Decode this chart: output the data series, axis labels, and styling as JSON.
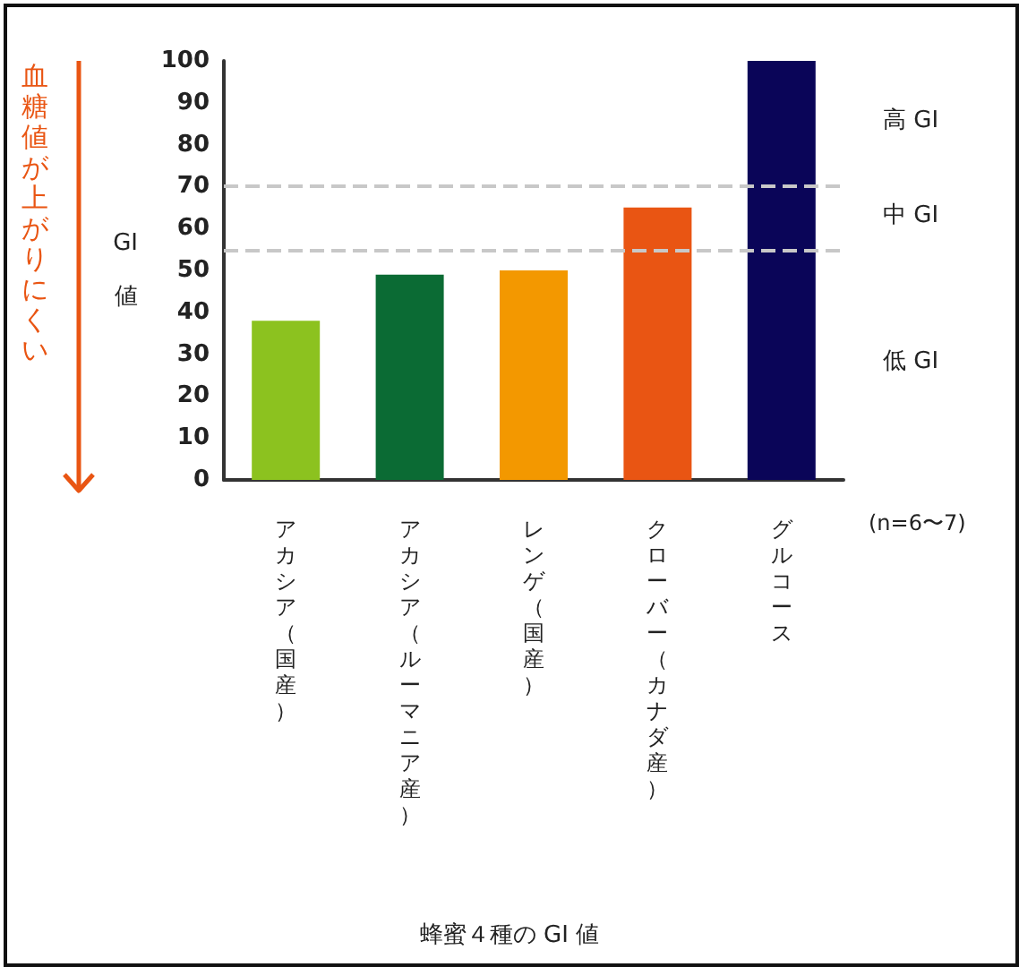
{
  "chart_data": {
    "type": "bar",
    "title": "蜂蜜４種の GI 値",
    "ylabel": "GI 値",
    "categories": [
      "アカシア（国産）",
      "アカシア（ルーマニア産）",
      "レンゲ（国産）",
      "クローバー（カナダ産）",
      "グルコース"
    ],
    "values": [
      38,
      49,
      50,
      65,
      100
    ],
    "colors": [
      "#8cc21f",
      "#0b6b34",
      "#f39800",
      "#e95513",
      "#0a0558"
    ],
    "ylim": [
      0,
      100
    ],
    "yticks": [
      0,
      10,
      20,
      30,
      40,
      50,
      60,
      70,
      80,
      90,
      100
    ],
    "ref_lines": [
      {
        "axis": "y",
        "value": 70,
        "color": "#c8c8c8",
        "line_style": "dashed"
      },
      {
        "axis": "y",
        "value": 55,
        "color": "#c8c8c8",
        "line_style": "dashed"
      }
    ],
    "annotations": [
      "血糖値が上がりにくい",
      "(n=6〜7)",
      "高 GI",
      "中 GI",
      "低 GI"
    ],
    "grid": false
  }
}
